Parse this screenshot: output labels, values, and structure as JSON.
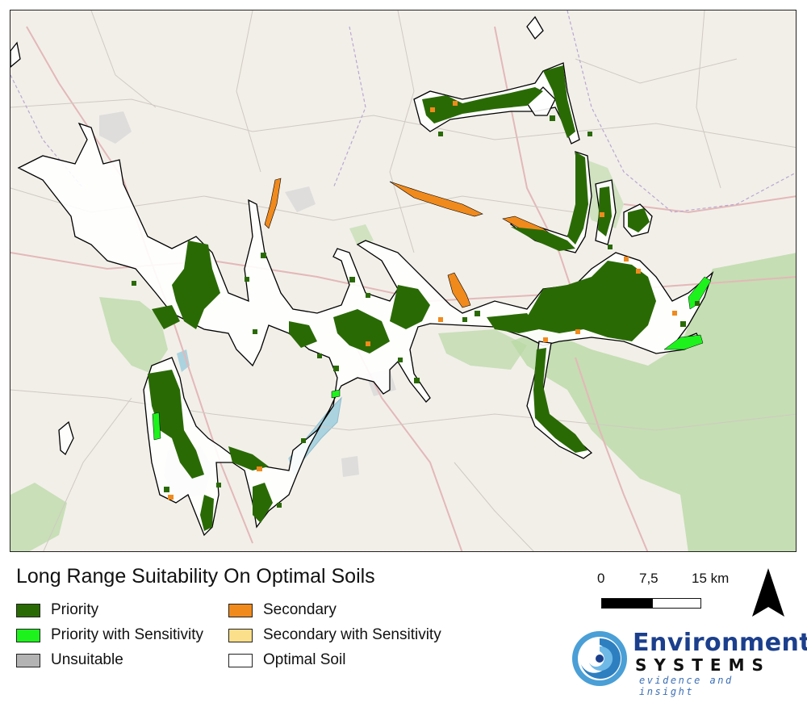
{
  "legend": {
    "title": "Long Range Suitability On Optimal Soils",
    "items": [
      {
        "label": "Priority",
        "color": "#2a6a05"
      },
      {
        "label": "Priority with Sensitivity",
        "color": "#1df21d"
      },
      {
        "label": "Unsuitable",
        "color": "#b3b3b3"
      },
      {
        "label": "Secondary",
        "color": "#f08a1c"
      },
      {
        "label": "Secondary with Sensitivity",
        "color": "#fcdf8b"
      },
      {
        "label": "Optimal Soil",
        "color": "#ffffff"
      }
    ]
  },
  "scale_bar": {
    "labels": [
      "0",
      "7,5",
      "15 km"
    ]
  },
  "north_arrow": {
    "icon": "north-arrow-icon"
  },
  "logo": {
    "line1": "Environment",
    "line2": "SYSTEMS",
    "line3": "evidence and insight",
    "icon": "swirl-logo-icon"
  },
  "colors": {
    "basemap": "#f2efe9",
    "woodland": "#b9d9a5",
    "water": "#aad3df",
    "urban": "#d6d6d6",
    "roads": "#e3b8b8",
    "boundary": "#b8a7d1"
  }
}
